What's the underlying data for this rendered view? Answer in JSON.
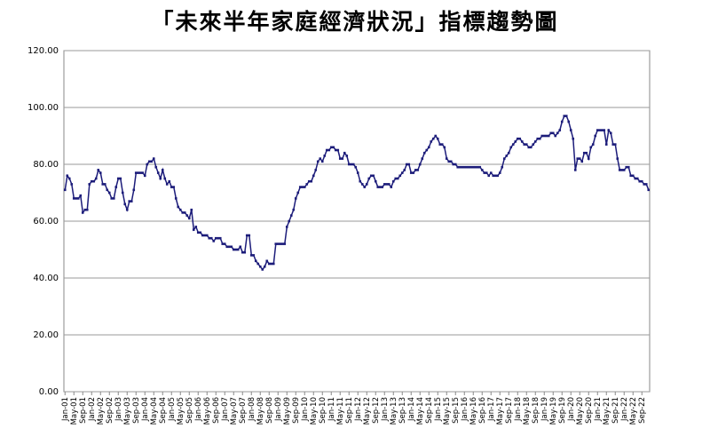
{
  "chart_data": {
    "type": "line",
    "title": "「未來半年家庭經濟狀況」指標趨勢圖",
    "categories": [
      "Jan-01",
      null,
      null,
      null,
      "May-01",
      null,
      null,
      null,
      "Sep-01",
      null,
      null,
      null,
      "Jan-02",
      null,
      null,
      null,
      "May-02",
      null,
      null,
      null,
      "Sep-02",
      null,
      null,
      null,
      "Jan-03",
      null,
      null,
      null,
      "May-03",
      null,
      null,
      null,
      "Sep-03",
      null,
      null,
      null,
      "Jan-04",
      null,
      null,
      null,
      "May-04",
      null,
      null,
      null,
      "Sep-04",
      null,
      null,
      null,
      "Jan-05",
      null,
      null,
      null,
      "May-05",
      null,
      null,
      null,
      "Sep-05",
      null,
      null,
      null,
      "Jan-06",
      null,
      null,
      null,
      "May-06",
      null,
      null,
      null,
      "Sep-06",
      null,
      null,
      null,
      "Jan-07",
      null,
      null,
      null,
      "May-07",
      null,
      null,
      null,
      "Sep-07",
      null,
      null,
      null,
      "Jan-08",
      null,
      null,
      null,
      "May-08",
      null,
      null,
      null,
      "Sep-08",
      null,
      null,
      null,
      "Jan-09",
      null,
      null,
      null,
      "May-09",
      null,
      null,
      null,
      "Sep-09",
      null,
      null,
      null,
      "Jan-10",
      null,
      null,
      null,
      "May-10",
      null,
      null,
      null,
      "Sep-10",
      null,
      null,
      null,
      "Jan-11",
      null,
      null,
      null,
      "May-11",
      null,
      null,
      null,
      "Sep-11",
      null,
      null,
      null,
      "Jan-12",
      null,
      null,
      null,
      "May-12",
      null,
      null,
      null,
      "Sep-12",
      null,
      null,
      null,
      "Jan-13",
      null,
      null,
      null,
      "May-13",
      null,
      null,
      null,
      "Sep-13",
      null,
      null,
      null,
      "Jan-14",
      null,
      null,
      null,
      "May-14",
      null,
      null,
      null,
      "Sep-14",
      null,
      null,
      null,
      "Jan-15",
      null,
      null,
      null,
      "May-15",
      null,
      null,
      null,
      "Sep-15",
      null,
      null,
      null,
      "Jan-16",
      null,
      null,
      null,
      "May-16",
      null,
      null,
      null,
      "Sep-16",
      null,
      null,
      null,
      "Jan-17",
      null,
      null,
      null,
      "May-17",
      null,
      null,
      null,
      "Sep-17",
      null,
      null,
      null,
      "Jan-18",
      null,
      null,
      null,
      "May-18",
      null,
      null,
      null,
      "Sep-18",
      null,
      null,
      null,
      "Jan-19",
      null,
      null,
      null,
      "May-19",
      null,
      null,
      null,
      "Sep-19",
      null,
      null,
      null,
      "Jan-20",
      null,
      null,
      null,
      "May-20",
      null,
      null,
      null,
      "Sep-20",
      null,
      null,
      null,
      "Jan-21",
      null,
      null,
      null,
      "May-21",
      null,
      null,
      null,
      "Sep-21",
      null,
      null,
      null,
      "Jan-22",
      null,
      null,
      null,
      "May-22",
      null,
      null,
      null,
      "Sep-22",
      null,
      null,
      null
    ],
    "color": "#1c1c7a",
    "values": [
      71,
      76,
      75,
      73,
      68,
      68,
      68,
      69,
      63,
      64,
      64,
      73,
      74,
      74,
      75,
      78,
      77,
      73,
      73,
      71,
      70,
      68,
      68,
      72,
      75,
      75,
      70,
      66,
      64,
      67,
      67,
      71,
      77,
      77,
      77,
      77,
      76,
      80,
      81,
      81,
      82,
      79,
      77,
      75,
      78,
      75,
      73,
      74,
      72,
      72,
      68,
      65,
      64,
      63,
      63,
      62,
      61,
      64,
      57,
      58,
      56,
      56,
      55,
      55,
      55,
      54,
      54,
      53,
      54,
      54,
      54,
      52,
      52,
      51,
      51,
      51,
      50,
      50,
      50,
      51,
      49,
      49,
      55,
      55,
      48,
      48,
      46,
      45,
      44,
      43,
      44,
      46,
      45,
      45,
      45,
      52,
      52,
      52,
      52,
      52,
      58,
      60,
      62,
      64,
      68,
      70,
      72,
      72,
      72,
      73,
      74,
      74,
      76,
      78,
      81,
      82,
      81,
      83,
      85,
      85,
      86,
      86,
      85,
      85,
      82,
      82,
      84,
      83,
      80,
      80,
      80,
      79,
      77,
      74,
      73,
      72,
      73,
      75,
      76,
      76,
      74,
      72,
      72,
      72,
      73,
      73,
      73,
      72,
      74,
      75,
      75,
      76,
      77,
      78,
      80,
      80,
      77,
      77,
      78,
      78,
      80,
      82,
      84,
      85,
      86,
      88,
      89,
      90,
      89,
      87,
      87,
      86,
      82,
      81,
      81,
      80,
      80,
      79,
      79,
      79,
      79,
      79,
      79,
      79,
      79,
      79,
      79,
      79,
      78,
      77,
      77,
      76,
      77,
      76,
      76,
      76,
      77,
      79,
      82,
      83,
      84,
      86,
      87,
      88,
      89,
      89,
      88,
      87,
      87,
      86,
      86,
      87,
      88,
      89,
      89,
      90,
      90,
      90,
      90,
      91,
      91,
      90,
      91,
      92,
      95,
      97,
      97,
      95,
      92,
      89,
      78,
      82,
      82,
      81,
      84,
      84,
      82,
      86,
      87,
      90,
      92,
      92,
      92,
      92,
      87,
      92,
      91,
      87,
      87,
      82,
      78,
      78,
      78,
      79,
      79,
      76,
      76,
      75,
      75,
      74,
      74,
      73,
      73,
      71
    ],
    "ylim": [
      0,
      120
    ],
    "yticks": [
      {
        "value": 0,
        "label": "0.00"
      },
      {
        "value": 20,
        "label": "20.00"
      },
      {
        "value": 40,
        "label": "40.00"
      },
      {
        "value": 60,
        "label": "60.00"
      },
      {
        "value": 80,
        "label": "80.00"
      },
      {
        "value": 100,
        "label": "100.00"
      },
      {
        "value": 120,
        "label": "120.00"
      }
    ],
    "grid": true
  }
}
